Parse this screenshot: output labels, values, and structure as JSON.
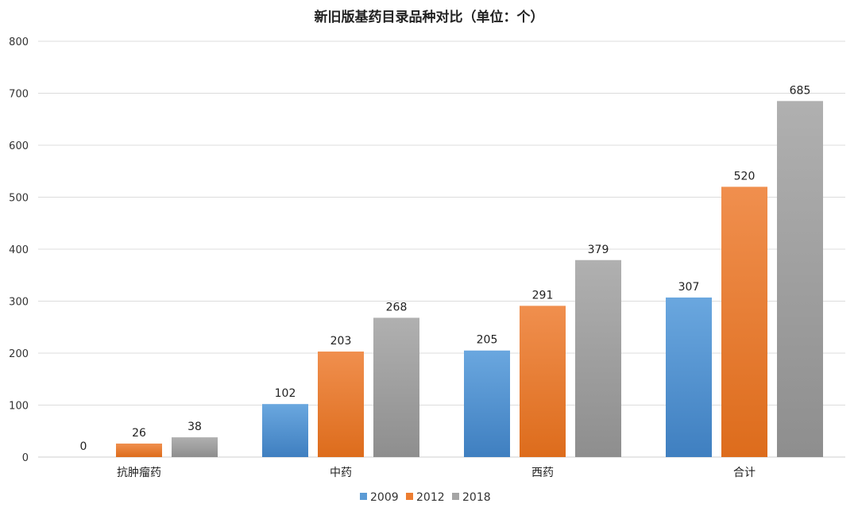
{
  "chart_data": {
    "type": "bar",
    "title": "新旧版基药目录品种对比（单位：个）",
    "categories": [
      "抗肿瘤药",
      "中药",
      "西药",
      "合计"
    ],
    "series": [
      {
        "name": "2009",
        "values": [
          0,
          102,
          205,
          307
        ],
        "color": "#5b9bd5"
      },
      {
        "name": "2012",
        "values": [
          26,
          203,
          291,
          520
        ],
        "color": "#ed7d31"
      },
      {
        "name": "2018",
        "values": [
          38,
          268,
          379,
          685
        ],
        "color": "#a5a5a5"
      }
    ],
    "ylim": [
      0,
      800
    ],
    "yticks": [
      0,
      100,
      200,
      300,
      400,
      500,
      600,
      700,
      800
    ],
    "xlabel": "",
    "ylabel": "",
    "grid": true,
    "legend_position": "bottom-center"
  }
}
